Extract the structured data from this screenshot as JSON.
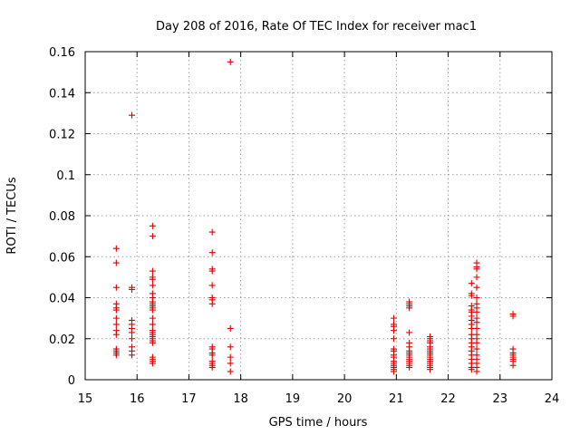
{
  "chart_data": {
    "type": "scatter",
    "title": "Day 208 of 2016, Rate Of TEC Index for receiver mac1",
    "xlabel": "GPS time / hours",
    "ylabel": "ROTI / TECUs",
    "xlim": [
      15,
      24
    ],
    "ylim": [
      0,
      0.16
    ],
    "xticks": [
      "15",
      "16",
      "17",
      "18",
      "19",
      "20",
      "21",
      "22",
      "23",
      "24"
    ],
    "yticks": [
      "0",
      "0.02",
      "0.04",
      "0.06",
      "0.08",
      "0.1",
      "0.12",
      "0.14",
      "0.16"
    ],
    "grid": true,
    "marker_color": "#e00000",
    "series": [
      {
        "name": "ROTI",
        "points": [
          [
            15.6,
            0.064
          ],
          [
            15.6,
            0.057
          ],
          [
            15.6,
            0.045
          ],
          [
            15.6,
            0.037
          ],
          [
            15.6,
            0.035
          ],
          [
            15.6,
            0.034
          ],
          [
            15.6,
            0.03
          ],
          [
            15.6,
            0.027
          ],
          [
            15.6,
            0.024
          ],
          [
            15.6,
            0.022
          ],
          [
            15.6,
            0.015
          ],
          [
            15.6,
            0.014
          ],
          [
            15.6,
            0.013
          ],
          [
            15.6,
            0.012
          ],
          [
            15.9,
            0.129
          ],
          [
            15.9,
            0.045
          ],
          [
            15.9,
            0.044
          ],
          [
            15.9,
            0.029
          ],
          [
            15.9,
            0.027
          ],
          [
            15.9,
            0.025
          ],
          [
            15.9,
            0.023
          ],
          [
            15.9,
            0.02
          ],
          [
            15.9,
            0.016
          ],
          [
            15.9,
            0.014
          ],
          [
            15.9,
            0.012
          ],
          [
            16.3,
            0.075
          ],
          [
            16.3,
            0.07
          ],
          [
            16.3,
            0.053
          ],
          [
            16.3,
            0.05
          ],
          [
            16.3,
            0.049
          ],
          [
            16.3,
            0.046
          ],
          [
            16.3,
            0.042
          ],
          [
            16.3,
            0.04
          ],
          [
            16.3,
            0.038
          ],
          [
            16.3,
            0.037
          ],
          [
            16.3,
            0.036
          ],
          [
            16.3,
            0.035
          ],
          [
            16.3,
            0.034
          ],
          [
            16.3,
            0.03
          ],
          [
            16.3,
            0.027
          ],
          [
            16.3,
            0.024
          ],
          [
            16.3,
            0.023
          ],
          [
            16.3,
            0.022
          ],
          [
            16.3,
            0.021
          ],
          [
            16.3,
            0.02
          ],
          [
            16.3,
            0.019
          ],
          [
            16.3,
            0.018
          ],
          [
            16.3,
            0.011
          ],
          [
            16.3,
            0.01
          ],
          [
            16.3,
            0.009
          ],
          [
            16.3,
            0.008
          ],
          [
            17.45,
            0.072
          ],
          [
            17.45,
            0.062
          ],
          [
            17.45,
            0.054
          ],
          [
            17.45,
            0.053
          ],
          [
            17.45,
            0.046
          ],
          [
            17.45,
            0.04
          ],
          [
            17.45,
            0.039
          ],
          [
            17.45,
            0.037
          ],
          [
            17.45,
            0.016
          ],
          [
            17.45,
            0.015
          ],
          [
            17.45,
            0.013
          ],
          [
            17.45,
            0.012
          ],
          [
            17.45,
            0.009
          ],
          [
            17.45,
            0.008
          ],
          [
            17.45,
            0.007
          ],
          [
            17.45,
            0.006
          ],
          [
            17.8,
            0.155
          ],
          [
            17.8,
            0.025
          ],
          [
            17.8,
            0.016
          ],
          [
            17.8,
            0.011
          ],
          [
            17.8,
            0.008
          ],
          [
            17.8,
            0.004
          ],
          [
            20.95,
            0.03
          ],
          [
            20.95,
            0.027
          ],
          [
            20.95,
            0.026
          ],
          [
            20.95,
            0.024
          ],
          [
            20.95,
            0.02
          ],
          [
            20.95,
            0.015
          ],
          [
            20.95,
            0.014
          ],
          [
            20.95,
            0.012
          ],
          [
            20.95,
            0.011
          ],
          [
            20.95,
            0.009
          ],
          [
            20.95,
            0.008
          ],
          [
            20.95,
            0.007
          ],
          [
            20.95,
            0.006
          ],
          [
            20.95,
            0.005
          ],
          [
            20.95,
            0.004
          ],
          [
            21.25,
            0.038
          ],
          [
            21.25,
            0.037
          ],
          [
            21.25,
            0.036
          ],
          [
            21.25,
            0.035
          ],
          [
            21.25,
            0.023
          ],
          [
            21.25,
            0.018
          ],
          [
            21.25,
            0.016
          ],
          [
            21.25,
            0.014
          ],
          [
            21.25,
            0.013
          ],
          [
            21.25,
            0.012
          ],
          [
            21.25,
            0.011
          ],
          [
            21.25,
            0.01
          ],
          [
            21.25,
            0.009
          ],
          [
            21.25,
            0.008
          ],
          [
            21.25,
            0.007
          ],
          [
            21.25,
            0.006
          ],
          [
            21.65,
            0.021
          ],
          [
            21.65,
            0.02
          ],
          [
            21.65,
            0.019
          ],
          [
            21.65,
            0.018
          ],
          [
            21.65,
            0.016
          ],
          [
            21.65,
            0.015
          ],
          [
            21.65,
            0.014
          ],
          [
            21.65,
            0.013
          ],
          [
            21.65,
            0.012
          ],
          [
            21.65,
            0.011
          ],
          [
            21.65,
            0.01
          ],
          [
            21.65,
            0.009
          ],
          [
            21.65,
            0.008
          ],
          [
            21.65,
            0.007
          ],
          [
            21.65,
            0.006
          ],
          [
            21.65,
            0.005
          ],
          [
            22.45,
            0.047
          ],
          [
            22.45,
            0.042
          ],
          [
            22.45,
            0.041
          ],
          [
            22.45,
            0.036
          ],
          [
            22.45,
            0.034
          ],
          [
            22.45,
            0.033
          ],
          [
            22.45,
            0.031
          ],
          [
            22.45,
            0.029
          ],
          [
            22.45,
            0.027
          ],
          [
            22.45,
            0.025
          ],
          [
            22.45,
            0.022
          ],
          [
            22.45,
            0.02
          ],
          [
            22.45,
            0.018
          ],
          [
            22.45,
            0.016
          ],
          [
            22.45,
            0.014
          ],
          [
            22.45,
            0.012
          ],
          [
            22.45,
            0.01
          ],
          [
            22.45,
            0.008
          ],
          [
            22.45,
            0.006
          ],
          [
            22.45,
            0.005
          ],
          [
            22.55,
            0.057
          ],
          [
            22.55,
            0.055
          ],
          [
            22.55,
            0.054
          ],
          [
            22.55,
            0.05
          ],
          [
            22.55,
            0.045
          ],
          [
            22.55,
            0.04
          ],
          [
            22.55,
            0.037
          ],
          [
            22.55,
            0.035
          ],
          [
            22.55,
            0.033
          ],
          [
            22.55,
            0.03
          ],
          [
            22.55,
            0.028
          ],
          [
            22.55,
            0.025
          ],
          [
            22.55,
            0.022
          ],
          [
            22.55,
            0.02
          ],
          [
            22.55,
            0.018
          ],
          [
            22.55,
            0.015
          ],
          [
            22.55,
            0.012
          ],
          [
            22.55,
            0.01
          ],
          [
            22.55,
            0.008
          ],
          [
            22.55,
            0.006
          ],
          [
            22.55,
            0.004
          ],
          [
            23.25,
            0.032
          ],
          [
            23.25,
            0.031
          ],
          [
            23.25,
            0.015
          ],
          [
            23.25,
            0.013
          ],
          [
            23.25,
            0.012
          ],
          [
            23.25,
            0.011
          ],
          [
            23.25,
            0.01
          ],
          [
            23.25,
            0.009
          ],
          [
            23.25,
            0.007
          ]
        ]
      }
    ]
  }
}
